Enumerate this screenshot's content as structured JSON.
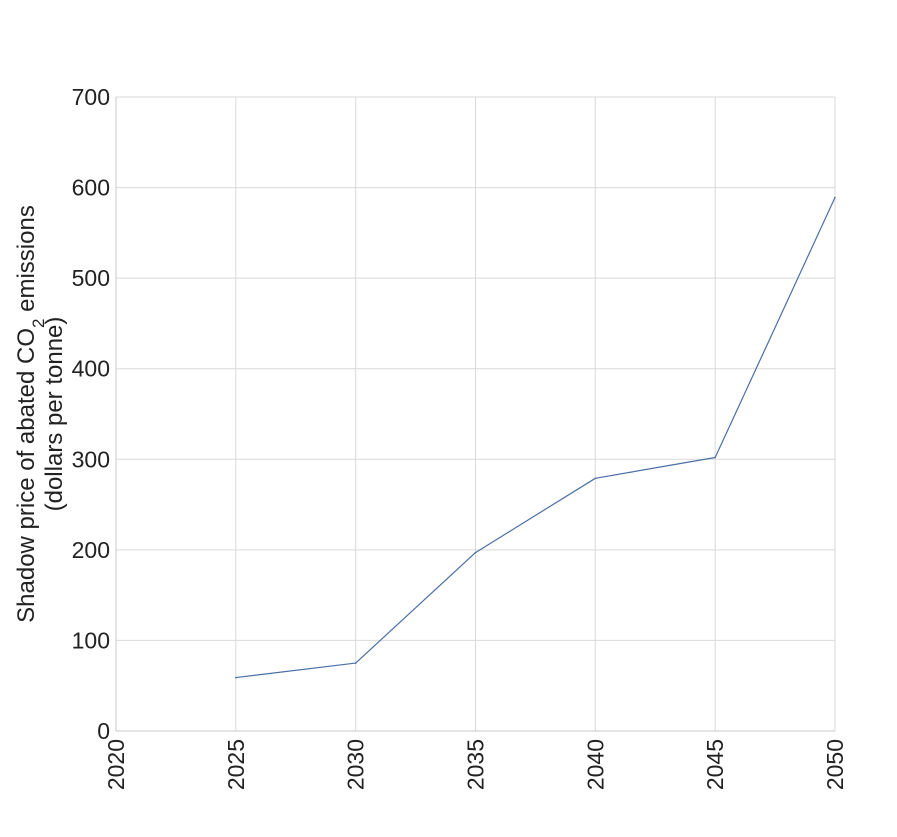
{
  "chart_data": {
    "type": "line",
    "title": "",
    "xlabel": "",
    "ylabel_line1": "Shadow price of abated CO",
    "ylabel_sub": "2",
    "ylabel_line1_end": " emissions",
    "ylabel_line2": "(dollars per tonne)",
    "x_ticks": [
      "2020",
      "2025",
      "2030",
      "2035",
      "2040",
      "2045",
      "2050"
    ],
    "y_ticks": [
      "0",
      "100",
      "200",
      "300",
      "400",
      "500",
      "600",
      "700"
    ],
    "xlim": [
      2020,
      2050
    ],
    "ylim": [
      0,
      700
    ],
    "grid": true,
    "series": [
      {
        "x": [
          2025,
          2030,
          2035,
          2040,
          2045,
          2050
        ],
        "y": [
          59,
          75,
          197,
          279,
          302,
          589
        ],
        "color": "#4a6fa5"
      }
    ]
  }
}
